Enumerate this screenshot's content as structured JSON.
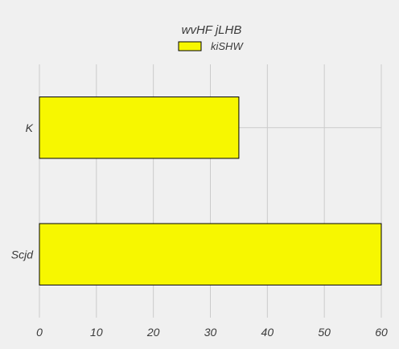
{
  "chart_data": {
    "type": "bar",
    "orientation": "horizontal",
    "title": "wvHF jLHB",
    "xlabel": "",
    "ylabel": "",
    "categories": [
      "K",
      "Scjd"
    ],
    "series": [
      {
        "name": "kiSHW",
        "values": [
          35,
          60
        ],
        "color": "#f7f700"
      }
    ],
    "xlim": [
      0,
      60
    ],
    "xticks": [
      0,
      10,
      20,
      30,
      40,
      50,
      60
    ],
    "grid": true,
    "legend": "top-center",
    "colors": {
      "background": "#f0f0f0",
      "grid": "#cbcbcb",
      "bar_edge": "#000000",
      "text": "#3a3a3a"
    }
  }
}
